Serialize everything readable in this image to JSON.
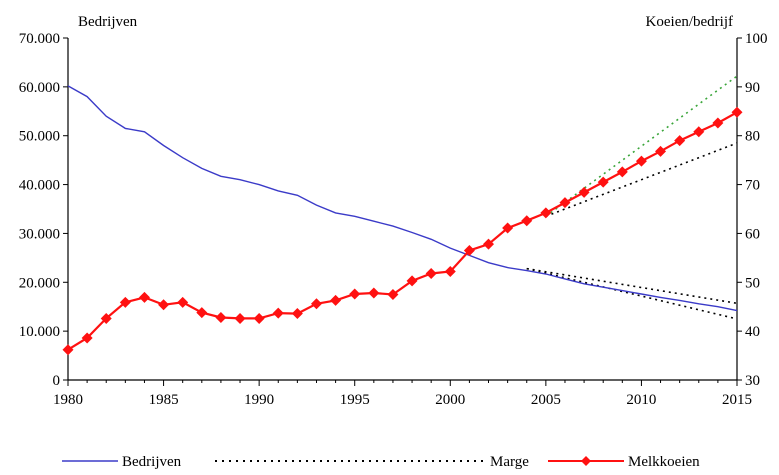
{
  "chart_data": {
    "type": "line",
    "y_left_label": "Bedrijven",
    "y_right_label": "Koeien/bedrijf",
    "x_range": [
      1980,
      2015
    ],
    "y_left_range": [
      0,
      70000
    ],
    "y_right_range": [
      30,
      100
    ],
    "x_ticks": [
      1980,
      1985,
      1990,
      1995,
      2000,
      2005,
      2010,
      2015
    ],
    "y_left_ticks": [
      {
        "v": 0,
        "label": "0"
      },
      {
        "v": 10000,
        "label": "10.000"
      },
      {
        "v": 20000,
        "label": "20.000"
      },
      {
        "v": 30000,
        "label": "30.000"
      },
      {
        "v": 40000,
        "label": "40.000"
      },
      {
        "v": 50000,
        "label": "50.000"
      },
      {
        "v": 60000,
        "label": "60.000"
      },
      {
        "v": 70000,
        "label": "70.000"
      }
    ],
    "y_right_ticks": [
      30,
      40,
      50,
      60,
      70,
      80,
      90,
      100
    ],
    "legend": {
      "bedrijven": "Bedrijven",
      "marge": "Marge",
      "melkkoeien": "Melkkoeien"
    },
    "legend_placement": "bottom",
    "series": [
      {
        "name": "Bedrijven",
        "axis": "left",
        "color": "#3b3bc8",
        "x": [
          1980,
          1981,
          1982,
          1983,
          1984,
          1985,
          1986,
          1987,
          1988,
          1989,
          1990,
          1991,
          1992,
          1993,
          1994,
          1995,
          1996,
          1997,
          1998,
          1999,
          2000,
          2001,
          2002,
          2003,
          2004,
          2005,
          2006,
          2007,
          2008,
          2009,
          2010,
          2011,
          2012,
          2013,
          2014,
          2015
        ],
        "y": [
          60200,
          58000,
          54000,
          51500,
          50800,
          48000,
          45500,
          43300,
          41700,
          41000,
          40000,
          38700,
          37800,
          35800,
          34200,
          33500,
          32500,
          31500,
          30200,
          28800,
          27000,
          25500,
          24000,
          23000,
          22400,
          21700,
          20700,
          19700,
          19000,
          18300,
          17600,
          16900,
          16300,
          15600,
          15000,
          14200
        ]
      },
      {
        "name": "Melkkoeien",
        "axis": "right",
        "color": "#ff1111",
        "marker": "diamond",
        "x": [
          1980,
          1981,
          1982,
          1983,
          1984,
          1985,
          1986,
          1987,
          1988,
          1989,
          1990,
          1991,
          1992,
          1993,
          1994,
          1995,
          1996,
          1997,
          1998,
          1999,
          2000,
          2001,
          2002,
          2003,
          2004,
          2005,
          2006,
          2007,
          2008,
          2009,
          2010,
          2011,
          2012,
          2013,
          2014,
          2015
        ],
        "y": [
          36.2,
          38.6,
          42.6,
          45.9,
          46.9,
          45.4,
          45.9,
          43.8,
          42.8,
          42.6,
          42.6,
          43.7,
          43.6,
          45.6,
          46.3,
          47.6,
          47.8,
          47.5,
          50.3,
          51.8,
          52.2,
          56.5,
          57.8,
          61.1,
          62.6,
          64.2,
          66.3,
          68.4,
          70.5,
          72.6,
          74.8,
          76.8,
          79.0,
          80.8,
          82.6,
          84.8
        ]
      }
    ],
    "margins": [
      {
        "axis": "left",
        "color": "#000000",
        "x": [
          2004,
          2015
        ],
        "y": [
          22800,
          12500
        ]
      },
      {
        "axis": "left",
        "color": "#000000",
        "x": [
          2004,
          2015
        ],
        "y": [
          22800,
          15700
        ]
      },
      {
        "axis": "right",
        "color": "#3aa53a",
        "x": [
          2005,
          2015
        ],
        "y": [
          63.5,
          92.2
        ]
      },
      {
        "axis": "right",
        "color": "#000000",
        "x": [
          2005,
          2015
        ],
        "y": [
          63.5,
          78.5
        ]
      }
    ]
  }
}
